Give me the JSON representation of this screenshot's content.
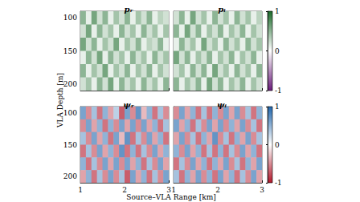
{
  "chart_data": [
    {
      "type": "heatmap",
      "title": "pᵣ",
      "ylabel": "VLA Depth [m]",
      "tick_labels": "y",
      "x": [
        1.0625,
        1.1875,
        1.3125,
        1.4375,
        1.5625,
        1.6875,
        1.8125,
        1.9375,
        2.0625,
        2.1875,
        2.3125,
        2.4375,
        2.5625,
        2.6875,
        2.8125,
        2.9375
      ],
      "y": [
        100,
        120,
        140,
        160,
        180,
        200
      ],
      "cells": [
        [
          0.5,
          0.1,
          0.6,
          0.2,
          0.5,
          0.1,
          0.4,
          0.2,
          0.5,
          0.1,
          0.4,
          0.2,
          0.5,
          0.1,
          0.3,
          0.2
        ],
        [
          0.2,
          0.6,
          0.1,
          0.5,
          0.2,
          0.4,
          0.1,
          0.5,
          0.2,
          0.4,
          0.1,
          0.5,
          0.2,
          0.4,
          0.1,
          0.4
        ],
        [
          0.6,
          0.2,
          0.5,
          0.1,
          0.4,
          0.2,
          0.6,
          0.1,
          0.4,
          0.2,
          0.5,
          0.1,
          0.3,
          0.2,
          0.5,
          0.1
        ],
        [
          0.1,
          0.5,
          0.2,
          0.6,
          0.1,
          0.5,
          0.2,
          0.4,
          0.1,
          0.5,
          0.2,
          0.4,
          0.1,
          0.5,
          0.2,
          0.4
        ],
        [
          0.5,
          0.1,
          0.4,
          0.2,
          0.6,
          0.1,
          0.4,
          0.2,
          0.5,
          0.1,
          0.4,
          0.2,
          0.5,
          0.1,
          0.4,
          0.2
        ],
        [
          0.2,
          0.4,
          0.1,
          0.5,
          0.2,
          0.6,
          0.1,
          0.5,
          0.2,
          0.4,
          0.1,
          0.5,
          0.2,
          0.4,
          0.1,
          0.5
        ]
      ],
      "xlim": [
        1,
        3
      ],
      "ylim": [
        90,
        210
      ],
      "xticks": [
        1,
        2,
        3
      ],
      "yticks": [
        100,
        150,
        200
      ],
      "colorbar": {
        "range": [
          -1,
          1
        ],
        "ticks": [
          -1,
          0,
          1
        ],
        "colors": [
          "#6a1b7a",
          "#ffffff",
          "#1b6b2a"
        ]
      }
    },
    {
      "type": "heatmap",
      "title": "pᵢ",
      "tick_labels": false,
      "x": [
        1.0625,
        1.1875,
        1.3125,
        1.4375,
        1.5625,
        1.6875,
        1.8125,
        1.9375,
        2.0625,
        2.1875,
        2.3125,
        2.4375,
        2.5625,
        2.6875,
        2.8125,
        2.9375
      ],
      "y": [
        100,
        120,
        140,
        160,
        180,
        200
      ],
      "cells": [
        [
          0.2,
          0.5,
          0.1,
          0.6,
          0.2,
          0.4,
          0.1,
          0.5,
          0.2,
          0.4,
          0.1,
          0.5,
          0.2,
          0.4,
          0.1,
          0.3
        ],
        [
          0.5,
          0.1,
          0.6,
          0.2,
          0.5,
          0.1,
          0.4,
          0.2,
          0.5,
          0.1,
          0.4,
          0.2,
          0.5,
          0.1,
          0.4,
          0.2
        ],
        [
          0.1,
          0.5,
          0.2,
          0.4,
          0.1,
          0.6,
          0.2,
          0.4,
          0.1,
          0.5,
          0.2,
          0.4,
          0.1,
          0.5,
          0.2,
          0.4
        ],
        [
          0.6,
          0.2,
          0.5,
          0.1,
          0.4,
          0.2,
          0.5,
          0.1,
          0.4,
          0.2,
          0.5,
          0.1,
          0.4,
          0.2,
          0.5,
          0.1
        ],
        [
          0.2,
          0.4,
          0.1,
          0.5,
          0.2,
          0.5,
          0.1,
          0.6,
          0.2,
          0.4,
          0.1,
          0.5,
          0.2,
          0.4,
          0.1,
          0.5
        ],
        [
          0.5,
          0.1,
          0.4,
          0.2,
          0.5,
          0.1,
          0.6,
          0.2,
          0.5,
          0.1,
          0.4,
          0.2,
          0.5,
          0.1,
          0.4,
          0.2
        ]
      ],
      "xlim": [
        1,
        3
      ],
      "ylim": [
        90,
        210
      ],
      "xticks": [
        1,
        2,
        3
      ],
      "yticks": [
        100,
        150,
        200
      ],
      "colorbar": {
        "range": [
          -1,
          1
        ],
        "ticks": [
          -1,
          0,
          1
        ],
        "colors": [
          "#6a1b7a",
          "#ffffff",
          "#1b6b2a"
        ]
      }
    },
    {
      "type": "heatmap",
      "title": "ψᵣ",
      "xlabel": "Source–VLA Range [km]",
      "tick_labels": true,
      "x": [
        1.0625,
        1.1875,
        1.3125,
        1.4375,
        1.5625,
        1.6875,
        1.8125,
        1.9375,
        2.0625,
        2.1875,
        2.3125,
        2.4375,
        2.5625,
        2.6875,
        2.8125,
        2.9375
      ],
      "y": [
        100,
        120,
        140,
        160,
        180,
        200
      ],
      "cells": [
        [
          0.6,
          -0.5,
          0.4,
          -0.6,
          0.5,
          -0.4,
          0.3,
          -0.7,
          0.6,
          -0.5,
          0.7,
          -0.3,
          0.5,
          -0.6,
          0.4,
          -0.5
        ],
        [
          -0.5,
          0.6,
          -0.4,
          0.5,
          -0.6,
          0.5,
          -0.5,
          0.6,
          -0.4,
          0.6,
          -0.5,
          0.6,
          -0.4,
          0.5,
          -0.6,
          0.4
        ],
        [
          0.4,
          -0.5,
          0.6,
          -0.4,
          0.5,
          -0.6,
          0.6,
          -0.3,
          0.7,
          -0.6,
          0.4,
          -0.5,
          0.6,
          -0.4,
          0.5,
          -0.6
        ],
        [
          -0.6,
          0.4,
          -0.5,
          0.6,
          -0.4,
          0.5,
          -0.5,
          0.7,
          -0.6,
          0.5,
          -0.6,
          0.4,
          -0.5,
          0.6,
          -0.4,
          0.5
        ],
        [
          0.5,
          -0.6,
          0.4,
          -0.5,
          0.6,
          -0.4,
          0.6,
          -0.5,
          0.6,
          -0.4,
          0.5,
          -0.6,
          0.4,
          -0.5,
          0.6,
          -0.4
        ],
        [
          -0.4,
          0.5,
          -0.6,
          0.4,
          -0.5,
          0.6,
          -0.5,
          0.4,
          -0.7,
          0.6,
          -0.4,
          0.5,
          -0.6,
          0.4,
          -0.5,
          0.6
        ]
      ],
      "xlim": [
        1,
        3
      ],
      "ylim": [
        90,
        210
      ],
      "xticks": [
        1,
        2,
        3
      ],
      "yticks": [
        100,
        150,
        200
      ],
      "colorbar": {
        "range": [
          -1,
          1
        ],
        "ticks": [
          -1,
          0,
          1
        ],
        "colors": [
          "#b2182b",
          "#ffffff",
          "#2166ac"
        ]
      }
    },
    {
      "type": "heatmap",
      "title": "ψᵢ",
      "tick_labels": "x",
      "x": [
        1.0625,
        1.1875,
        1.3125,
        1.4375,
        1.5625,
        1.6875,
        1.8125,
        1.9375,
        2.0625,
        2.1875,
        2.3125,
        2.4375,
        2.5625,
        2.6875,
        2.8125,
        2.9375
      ],
      "y": [
        100,
        120,
        140,
        160,
        180,
        200
      ],
      "cells": [
        [
          -0.5,
          0.6,
          -0.4,
          0.5,
          -0.6,
          0.4,
          -0.6,
          0.5,
          -0.5,
          0.6,
          -0.4,
          0.6,
          -0.5,
          0.4,
          -0.6,
          0.5
        ],
        [
          0.6,
          -0.4,
          0.5,
          -0.6,
          0.4,
          -0.5,
          0.6,
          -0.4,
          0.6,
          -0.5,
          0.5,
          -0.4,
          0.6,
          -0.5,
          0.4,
          -0.6
        ],
        [
          -0.4,
          0.6,
          -0.5,
          0.4,
          -0.6,
          0.5,
          -0.4,
          0.7,
          -0.5,
          0.4,
          -0.6,
          0.5,
          -0.4,
          0.6,
          -0.5,
          0.4
        ],
        [
          0.5,
          -0.5,
          0.6,
          -0.4,
          0.5,
          -0.6,
          0.4,
          -0.6,
          0.5,
          -0.6,
          0.4,
          -0.5,
          0.6,
          -0.4,
          0.5,
          -0.6
        ],
        [
          -0.6,
          0.4,
          -0.5,
          0.6,
          -0.4,
          0.5,
          -0.6,
          0.5,
          -0.4,
          0.6,
          -0.5,
          0.4,
          -0.6,
          0.5,
          -0.4,
          0.6
        ],
        [
          0.4,
          -0.6,
          0.5,
          -0.4,
          0.6,
          -0.5,
          0.5,
          -0.6,
          0.6,
          -0.4,
          0.5,
          -0.6,
          0.4,
          -0.5,
          0.6,
          -0.4
        ]
      ],
      "xlim": [
        1,
        3
      ],
      "ylim": [
        90,
        210
      ],
      "xticks": [
        1,
        2,
        3
      ],
      "yticks": [
        100,
        150,
        200
      ],
      "colorbar": {
        "range": [
          -1,
          1
        ],
        "ticks": [
          -1,
          0,
          1
        ],
        "colors": [
          "#b2182b",
          "#ffffff",
          "#2166ac"
        ]
      }
    }
  ]
}
